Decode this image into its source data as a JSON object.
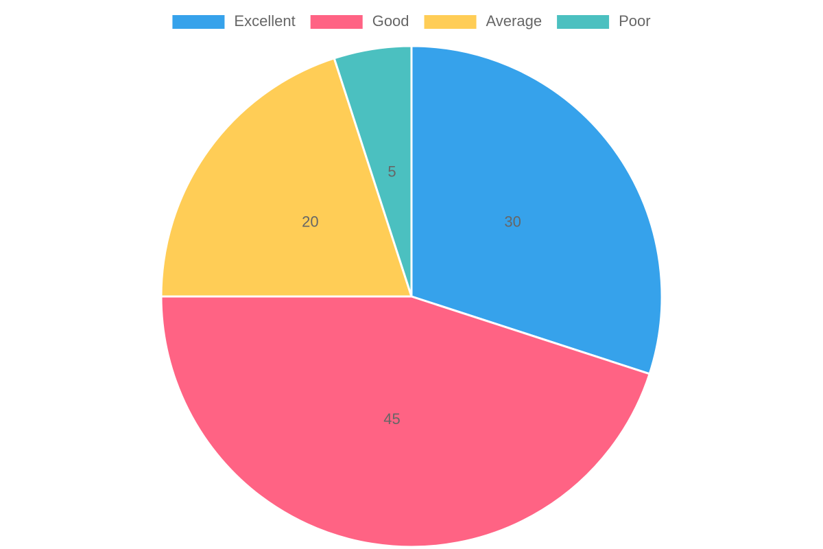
{
  "chart_data": {
    "type": "pie",
    "categories": [
      "Excellent",
      "Good",
      "Average",
      "Poor"
    ],
    "values": [
      30,
      45,
      20,
      5
    ],
    "colors": [
      "#36a2eb",
      "#ff6384",
      "#ffcd56",
      "#4bc0c0"
    ],
    "legend": "top"
  }
}
